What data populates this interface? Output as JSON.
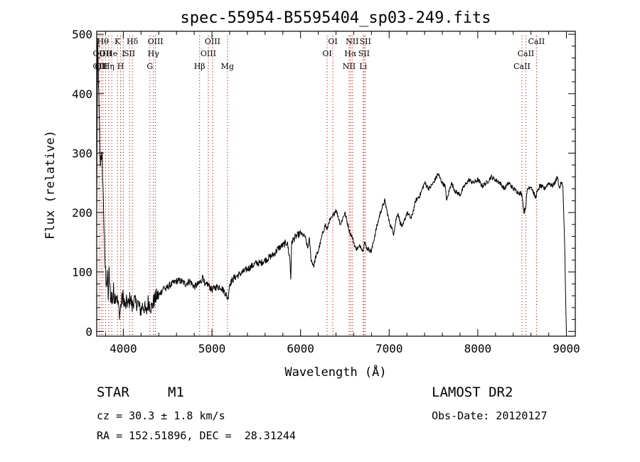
{
  "chart_data": {
    "type": "line",
    "title": "spec-55954-B5595404_sp03-249.fits",
    "xlabel": "Wavelength (Å)",
    "ylabel": "Flux (relative)",
    "xlim": [
      3700,
      9100
    ],
    "ylim": [
      -8,
      505
    ],
    "xticks": [
      4000,
      5000,
      6000,
      7000,
      8000,
      9000
    ],
    "yticks": [
      0,
      100,
      200,
      300,
      400,
      500
    ],
    "grid": false,
    "line_color": "#000000",
    "marker_color": "#cc0000",
    "series": [
      {
        "x": [
          3700,
          3710,
          3720,
          3730,
          3740,
          3750,
          3760,
          3770,
          3780,
          3790,
          3800,
          3810,
          3820,
          3830,
          3840,
          3850,
          3860,
          3870,
          3880,
          3890,
          3900,
          3920,
          3940,
          3960,
          3980,
          4000,
          4020,
          4040,
          4060,
          4080,
          4100,
          4120,
          4140,
          4160,
          4180,
          4200,
          4220,
          4240,
          4260,
          4280,
          4300,
          4320,
          4340,
          4360,
          4380,
          4400,
          4420,
          4440,
          4460,
          4480,
          4500,
          4550,
          4600,
          4650,
          4700,
          4750,
          4800,
          4850,
          4880,
          4900,
          4920,
          4950,
          5000,
          5050,
          5100,
          5150,
          5180,
          5200,
          5250,
          5300,
          5350,
          5400,
          5450,
          5500,
          5550,
          5600,
          5650,
          5700,
          5750,
          5800,
          5850,
          5880,
          5890,
          5900,
          5920,
          5950,
          6000,
          6050,
          6080,
          6100,
          6120,
          6150,
          6170,
          6200,
          6250,
          6280,
          6300,
          6320,
          6350,
          6400,
          6450,
          6500,
          6550,
          6563,
          6580,
          6600,
          6620,
          6650,
          6680,
          6700,
          6720,
          6750,
          6800,
          6850,
          6900,
          6950,
          7000,
          7050,
          7080,
          7100,
          7120,
          7150,
          7200,
          7250,
          7300,
          7350,
          7400,
          7450,
          7500,
          7550,
          7600,
          7630,
          7650,
          7700,
          7750,
          7800,
          7850,
          7900,
          7950,
          8000,
          8050,
          8100,
          8150,
          8200,
          8250,
          8300,
          8350,
          8400,
          8450,
          8500,
          8520,
          8540,
          8560,
          8600,
          8650,
          8660,
          8700,
          8750,
          8800,
          8850,
          8900,
          8920,
          8940,
          8960,
          8980,
          8990,
          9000
        ],
        "y": [
          200,
          480,
          420,
          350,
          280,
          300,
          290,
          250,
          190,
          130,
          100,
          80,
          90,
          60,
          100,
          70,
          55,
          65,
          50,
          70,
          55,
          65,
          45,
          30,
          50,
          60,
          40,
          50,
          45,
          60,
          40,
          55,
          45,
          50,
          40,
          35,
          45,
          40,
          30,
          50,
          45,
          40,
          50,
          55,
          60,
          60,
          65,
          70,
          75,
          70,
          75,
          80,
          85,
          85,
          80,
          85,
          75,
          80,
          85,
          95,
          75,
          80,
          70,
          75,
          75,
          65,
          55,
          80,
          90,
          95,
          100,
          105,
          110,
          115,
          115,
          120,
          125,
          130,
          140,
          145,
          150,
          120,
          90,
          150,
          155,
          160,
          165,
          160,
          140,
          155,
          120,
          110,
          125,
          135,
          165,
          180,
          170,
          185,
          190,
          205,
          180,
          200,
          170,
          165,
          160,
          150,
          140,
          140,
          145,
          135,
          150,
          140,
          135,
          170,
          200,
          220,
          185,
          165,
          190,
          200,
          185,
          175,
          200,
          190,
          220,
          230,
          250,
          240,
          250,
          265,
          250,
          245,
          220,
          250,
          235,
          230,
          245,
          255,
          250,
          255,
          245,
          250,
          260,
          255,
          250,
          240,
          250,
          240,
          235,
          230,
          200,
          210,
          240,
          245,
          225,
          230,
          245,
          240,
          250,
          245,
          260,
          240,
          250,
          245,
          150,
          60,
          0
        ]
      }
    ],
    "lines": [
      {
        "w": 3727,
        "labels": [
          "OII",
          "OII"
        ],
        "rows": [
          1,
          2
        ]
      },
      {
        "w": 3750,
        "labels": [
          "OII"
        ],
        "rows": [
          2
        ]
      },
      {
        "w": 3770,
        "labels": [
          "Hθ"
        ],
        "rows": [
          0
        ]
      },
      {
        "w": 3800,
        "labels": [
          "OII"
        ],
        "rows": [
          1
        ]
      },
      {
        "w": 3835,
        "labels": [
          "Hη"
        ],
        "rows": [
          2
        ]
      },
      {
        "w": 3870,
        "labels": [
          "He"
        ],
        "rows": [
          1
        ]
      },
      {
        "w": 3934,
        "labels": [
          "K"
        ],
        "rows": [
          0
        ]
      },
      {
        "w": 3969,
        "labels": [
          "H"
        ],
        "rows": [
          2
        ]
      },
      {
        "w": 4000,
        "labels": [
          "I"
        ],
        "rows": [
          1
        ]
      },
      {
        "w": 4070,
        "labels": [
          "SII"
        ],
        "rows": [
          1
        ]
      },
      {
        "w": 4102,
        "labels": [
          "Hδ"
        ],
        "rows": [
          0
        ]
      },
      {
        "w": 4300,
        "labels": [
          "G"
        ],
        "rows": [
          2
        ]
      },
      {
        "w": 4340,
        "labels": [
          "Hγ"
        ],
        "rows": [
          1
        ]
      },
      {
        "w": 4363,
        "labels": [
          "OIII"
        ],
        "rows": [
          0
        ]
      },
      {
        "w": 4861,
        "labels": [
          "Hβ"
        ],
        "rows": [
          2
        ]
      },
      {
        "w": 4959,
        "labels": [
          "OIII"
        ],
        "rows": [
          1
        ]
      },
      {
        "w": 5007,
        "labels": [
          "OIII"
        ],
        "rows": [
          0
        ]
      },
      {
        "w": 5175,
        "labels": [
          "Mg"
        ],
        "rows": [
          2
        ]
      },
      {
        "w": 6300,
        "labels": [
          "OI"
        ],
        "rows": [
          1
        ]
      },
      {
        "w": 6364,
        "labels": [
          "OI"
        ],
        "rows": [
          0
        ]
      },
      {
        "w": 6548,
        "labels": [
          "NII"
        ],
        "rows": [
          2
        ]
      },
      {
        "w": 6563,
        "labels": [
          "Hα"
        ],
        "rows": [
          1
        ]
      },
      {
        "w": 6583,
        "labels": [
          "NII"
        ],
        "rows": [
          0
        ]
      },
      {
        "w": 6707,
        "labels": [
          "Li"
        ],
        "rows": [
          2
        ]
      },
      {
        "w": 6716,
        "labels": [
          "SII"
        ],
        "rows": [
          1
        ]
      },
      {
        "w": 6731,
        "labels": [
          "SII"
        ],
        "rows": [
          0
        ]
      },
      {
        "w": 8498,
        "labels": [
          "CaII"
        ],
        "rows": [
          2
        ]
      },
      {
        "w": 8542,
        "labels": [
          "CaII"
        ],
        "rows": [
          1
        ]
      },
      {
        "w": 8662,
        "labels": [
          "CaII"
        ],
        "rows": [
          0
        ]
      }
    ]
  },
  "info": {
    "object_class": "STAR",
    "subclass": "M1",
    "survey": "LAMOST DR2",
    "cz": "cz = 30.3 ± 1.8 km/s",
    "obs_date": "Obs-Date: 20120127",
    "coords": "RA = 152.51896, DEC =  28.31244"
  }
}
